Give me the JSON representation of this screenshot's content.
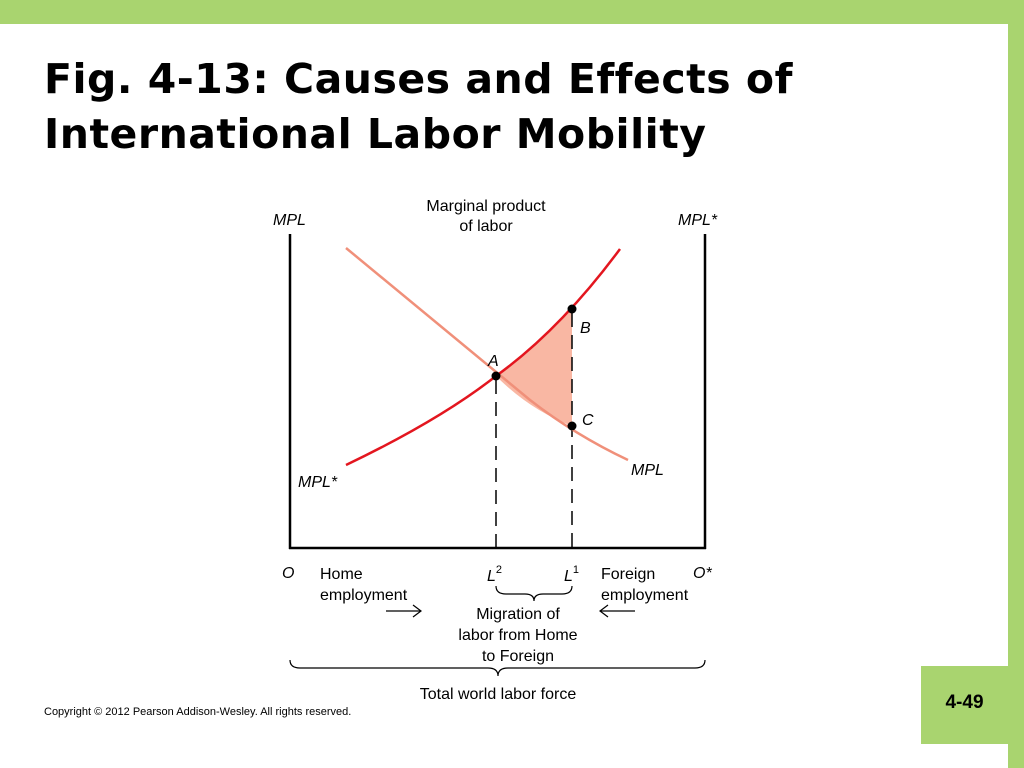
{
  "slide": {
    "title_line1": "Fig. 4-13: Causes and Effects of",
    "title_line2": "International Labor Mobility",
    "copyright": "Copyright © 2012 Pearson Addison-Wesley. All rights reserved.",
    "page_number": "4-49"
  },
  "figure": {
    "y_title_line1": "Marginal product",
    "y_title_line2": "of labor",
    "left_axis_label": "MPL",
    "right_axis_label": "MPL*",
    "curve_home_label": "MPL",
    "curve_foreign_label": "MPL*",
    "points": {
      "a": "A",
      "b": "B",
      "c": "C"
    },
    "origin_home": "O",
    "origin_foreign": "O*",
    "home_employment_line1": "Home",
    "home_employment_line2": "employment",
    "foreign_employment_line1": "Foreign",
    "foreign_employment_line2": "employment",
    "l2_base": "L",
    "l2_sup": "2",
    "l1_base": "L",
    "l1_sup": "1",
    "migration_line1": "Migration of",
    "migration_line2": "labor from Home",
    "migration_line3": "to Foreign",
    "total_label": "Total world labor force",
    "colors": {
      "home_curve": "#f0907a",
      "foreign_curve": "#e3161f",
      "shaded_area": "#f9b7a3"
    }
  }
}
